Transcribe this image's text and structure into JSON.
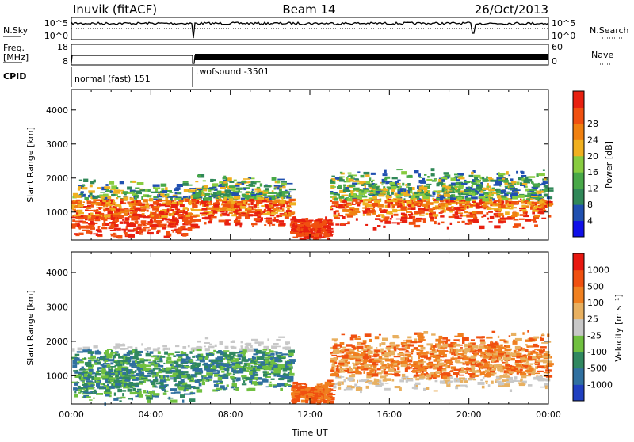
{
  "header": {
    "station": "Inuvik (fitACF)",
    "beam": "Beam 14",
    "date": "26/Oct/2013"
  },
  "sky_panel": {
    "left_label": "N.Sky",
    "left_ticks": [
      "10^5",
      "10^0"
    ],
    "right_ticks": [
      "10^5",
      "10^0"
    ],
    "right_label": "N.Search"
  },
  "freq_panel": {
    "left_label_1": "Freq.",
    "left_label_2": "[MHz]",
    "left_ticks": [
      "18",
      "8"
    ],
    "right_ticks": [
      "60",
      "0"
    ],
    "right_label": "Nave"
  },
  "cpid": {
    "label": "CPID",
    "modes": [
      {
        "name": "normal (fast) 151",
        "start_hour": 0,
        "end_hour": 6
      },
      {
        "name": "twofsound -3501",
        "start_hour": 6,
        "end_hour": 24
      }
    ]
  },
  "chart_data": [
    {
      "type": "heatmap",
      "title": "",
      "ylabel": "Slant Range [km]",
      "xlabel": "",
      "x_range_hours": [
        0,
        24
      ],
      "ylim": [
        180,
        4600
      ],
      "yticks": [
        "1000",
        "2000",
        "3000",
        "4000"
      ],
      "colorbar": {
        "label": "Power [dB]",
        "ticks": [
          "4",
          "8",
          "12",
          "16",
          "20",
          "24",
          "28"
        ],
        "colors": [
          "#1010e8",
          "#2050b0",
          "#308858",
          "#48a848",
          "#88cc40",
          "#f0b020",
          "#f08010",
          "#f05010",
          "#e82010"
        ]
      }
    },
    {
      "type": "heatmap",
      "title": "",
      "ylabel": "Slant Range [km]",
      "xlabel": "Time UT",
      "x_range_hours": [
        0,
        24
      ],
      "ylim": [
        180,
        4600
      ],
      "yticks": [
        "1000",
        "2000",
        "3000",
        "4000"
      ],
      "xticks": [
        "00:00",
        "04:00",
        "08:00",
        "12:00",
        "16:00",
        "20:00",
        "00:00"
      ],
      "colorbar": {
        "label": "Velocity [m s⁻¹]",
        "ticks": [
          "1000",
          "500",
          "100",
          "25",
          "-25",
          "-100",
          "-500",
          "-1000"
        ],
        "colors": [
          "#2040c0",
          "#3070a0",
          "#308860",
          "#70c040",
          "#c8c8c8",
          "#e8b060",
          "#f08020",
          "#f05010",
          "#e81810"
        ]
      }
    }
  ]
}
